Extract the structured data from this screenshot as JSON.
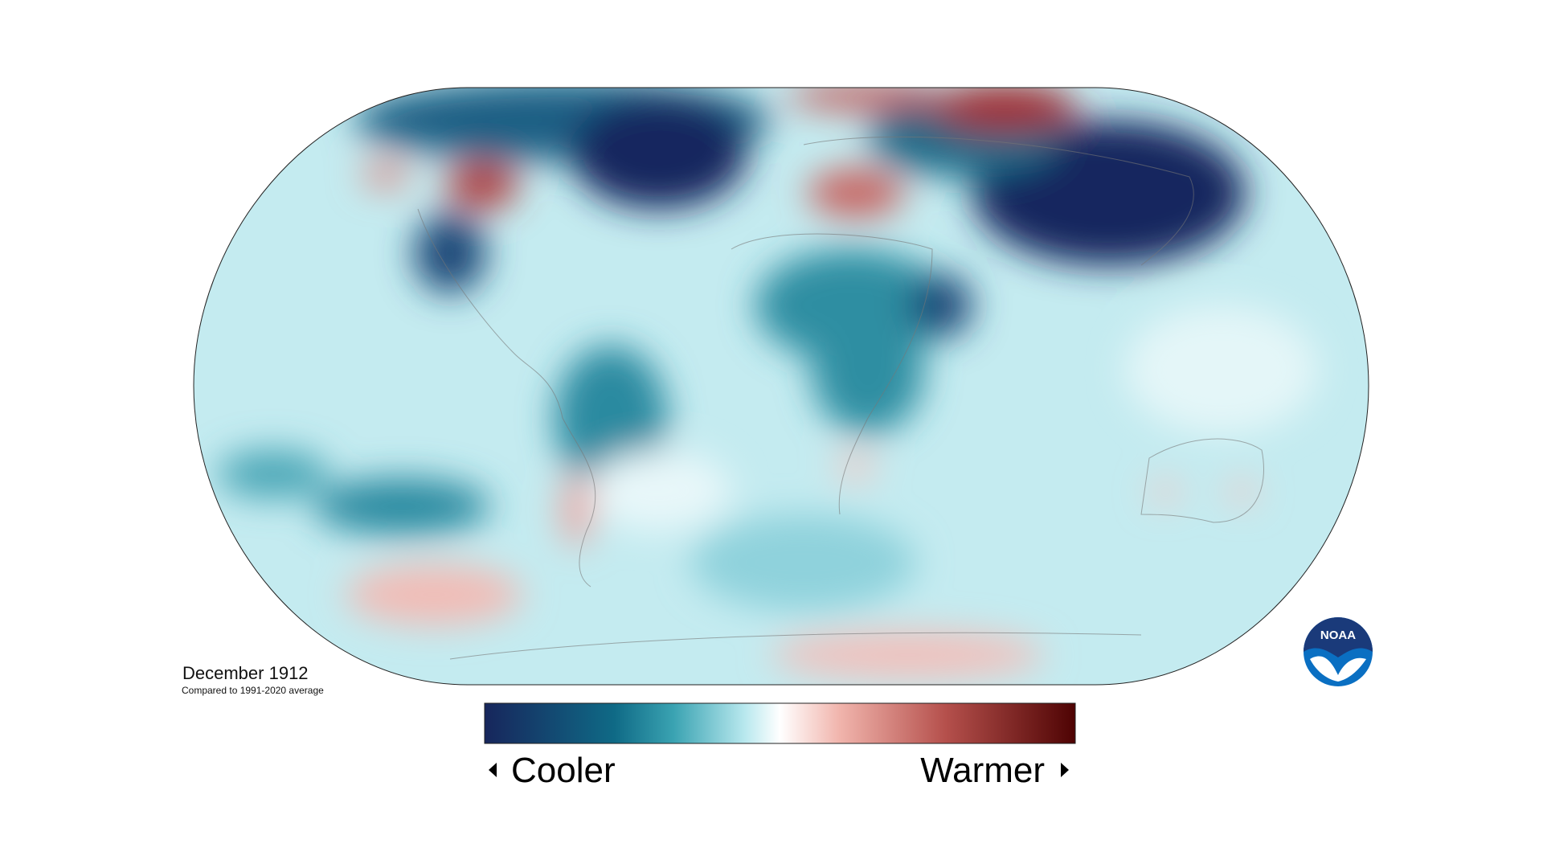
{
  "map": {
    "title": "December 1912",
    "subtitle": "Compared to 1991-2020 average"
  },
  "legend": {
    "low_label": "Cooler",
    "high_label": "Warmer"
  },
  "logo": {
    "text": "NOAA"
  }
}
